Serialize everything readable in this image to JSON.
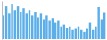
{
  "chart_data": {
    "type": "bar",
    "values": [
      6.5,
      9.0,
      7.0,
      9.5,
      8.0,
      9.0,
      7.5,
      8.5,
      7.0,
      8.0,
      6.5,
      7.5,
      6.0,
      7.0,
      5.5,
      6.5,
      5.0,
      5.8,
      4.5,
      5.0,
      3.5,
      4.0,
      3.0,
      3.5,
      2.5,
      2.8,
      3.5,
      2.5,
      2.0,
      2.8,
      4.5,
      2.5,
      3.5,
      8.8,
      5.5,
      7.2
    ],
    "color": "#5baee8",
    "ylim": [
      0,
      10.5
    ],
    "tick_labels": false
  }
}
